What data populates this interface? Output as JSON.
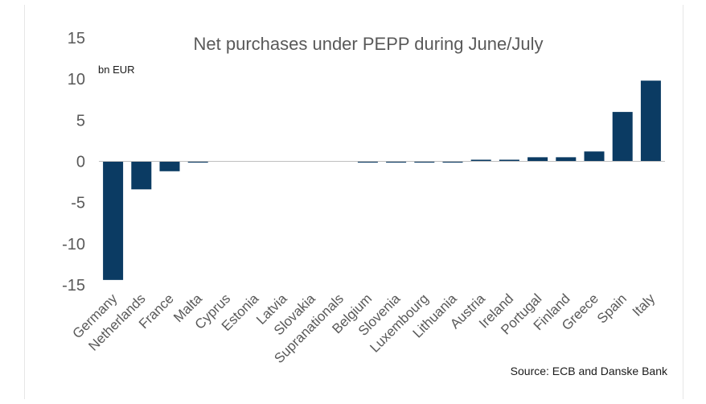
{
  "chart_data": {
    "type": "bar",
    "title": "Net purchases under PEPP during June/July",
    "unit_label": "bn EUR",
    "source": "Source: ECB and Danske Bank",
    "xlabel": "",
    "ylabel": "",
    "ylim": [
      -15,
      15
    ],
    "yticks": [
      15,
      10,
      5,
      0,
      -5,
      -10,
      -15
    ],
    "grid": false,
    "legend": "none",
    "bar_color": "#0b3b63",
    "categories": [
      "Germany",
      "Netherlands",
      "France",
      "Malta",
      "Cyprus",
      "Estonia",
      "Latvia",
      "Slovakia",
      "Supranationals",
      "Belgium",
      "Slovenia",
      "Luxembourg",
      "Lithuania",
      "Austria",
      "Ireland",
      "Portugal",
      "Finland",
      "Greece",
      "Spain",
      "Italy"
    ],
    "values": [
      -14.4,
      -3.4,
      -1.2,
      -0.15,
      0,
      0,
      0,
      0,
      0,
      -0.15,
      -0.15,
      -0.15,
      -0.15,
      0.2,
      0.2,
      0.5,
      0.5,
      1.2,
      6.0,
      9.8
    ]
  }
}
